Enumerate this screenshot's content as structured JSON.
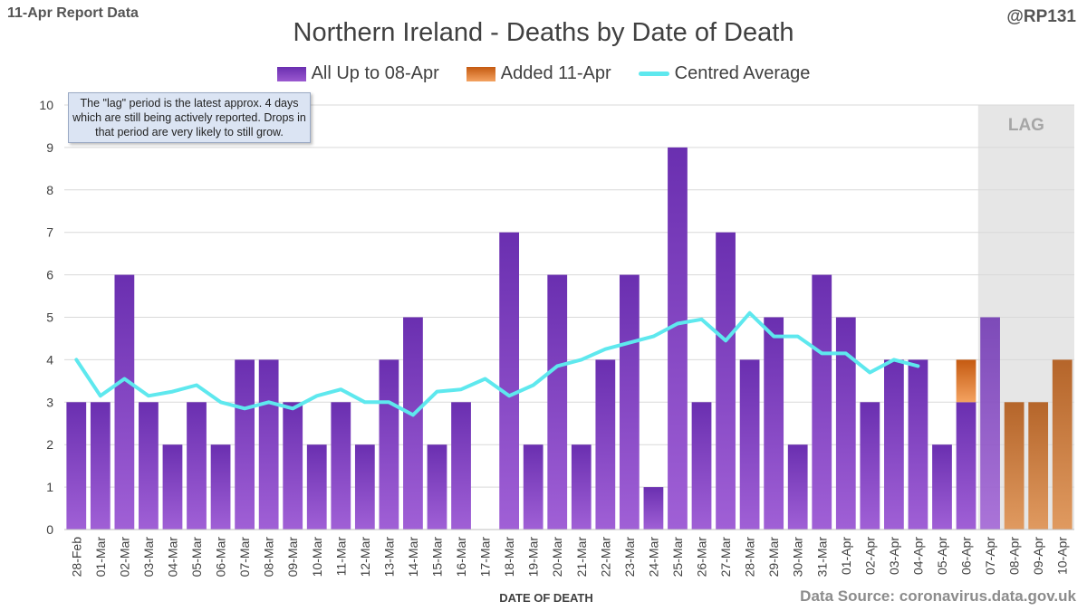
{
  "header": {
    "left_label": "11-Apr Report Data",
    "right_label": "@RP131"
  },
  "footer": {
    "source": "Data Source: coronavirus.data.gov.uk"
  },
  "chart_data": {
    "type": "bar",
    "title": "Northern Ireland - Deaths by Date of Death",
    "xlabel": "DATE OF DEATH",
    "ylabel": "",
    "ylim": [
      0,
      10
    ],
    "yticks": [
      "0",
      "1",
      "2",
      "3",
      "4",
      "5",
      "6",
      "7",
      "8",
      "9",
      "10"
    ],
    "grid": true,
    "legend_position": "top-center",
    "categories": [
      "28-Feb",
      "01-Mar",
      "02-Mar",
      "03-Mar",
      "04-Mar",
      "05-Mar",
      "06-Mar",
      "07-Mar",
      "08-Mar",
      "09-Mar",
      "10-Mar",
      "11-Mar",
      "12-Mar",
      "13-Mar",
      "14-Mar",
      "15-Mar",
      "16-Mar",
      "17-Mar",
      "18-Mar",
      "19-Mar",
      "20-Mar",
      "21-Mar",
      "22-Mar",
      "23-Mar",
      "24-Mar",
      "25-Mar",
      "26-Mar",
      "27-Mar",
      "28-Mar",
      "29-Mar",
      "30-Mar",
      "31-Mar",
      "01-Apr",
      "02-Apr",
      "03-Apr",
      "04-Apr",
      "05-Apr",
      "06-Apr",
      "07-Apr",
      "08-Apr",
      "09-Apr",
      "10-Apr"
    ],
    "series": [
      {
        "name": "All Up to 08-Apr",
        "kind": "bar",
        "color": "#7030a0",
        "values": [
          3,
          3,
          6,
          3,
          2,
          3,
          2,
          4,
          4,
          3,
          2,
          3,
          2,
          4,
          5,
          2,
          3,
          0,
          7,
          2,
          6,
          2,
          4,
          6,
          1,
          9,
          3,
          7,
          4,
          5,
          2,
          6,
          5,
          3,
          4,
          4,
          2,
          3,
          5,
          0,
          0,
          0
        ]
      },
      {
        "name": "Added 11-Apr",
        "kind": "bar-stacked",
        "color": "#c55a11",
        "values": [
          0,
          0,
          0,
          0,
          0,
          0,
          0,
          0,
          0,
          0,
          0,
          0,
          0,
          0,
          0,
          0,
          0,
          0,
          0,
          0,
          0,
          0,
          0,
          0,
          0,
          0,
          0,
          0,
          0,
          0,
          0,
          0,
          0,
          0,
          0,
          0,
          0,
          1,
          0,
          3,
          3,
          4
        ]
      },
      {
        "name": "Centred Average",
        "kind": "line",
        "color": "#5ee8ee",
        "values": [
          4.0,
          3.15,
          3.55,
          3.15,
          3.25,
          3.4,
          3.0,
          2.85,
          3.0,
          2.85,
          3.15,
          3.3,
          3.0,
          3.0,
          2.7,
          3.25,
          3.3,
          3.55,
          3.15,
          3.4,
          3.85,
          4.0,
          4.25,
          4.4,
          4.55,
          4.85,
          4.95,
          4.45,
          5.1,
          4.55,
          4.55,
          4.15,
          4.15,
          3.7,
          4.0,
          3.85,
          null,
          null,
          null,
          null,
          null,
          null
        ]
      }
    ],
    "annotations": {
      "note": "The \"lag\" period is the latest approx. 4 days which are still being actively reported. Drops in that period are very likely to still grow.",
      "lag_label": "LAG",
      "lag_start_category": "07-Apr",
      "lag_end_category": "10-Apr"
    }
  }
}
